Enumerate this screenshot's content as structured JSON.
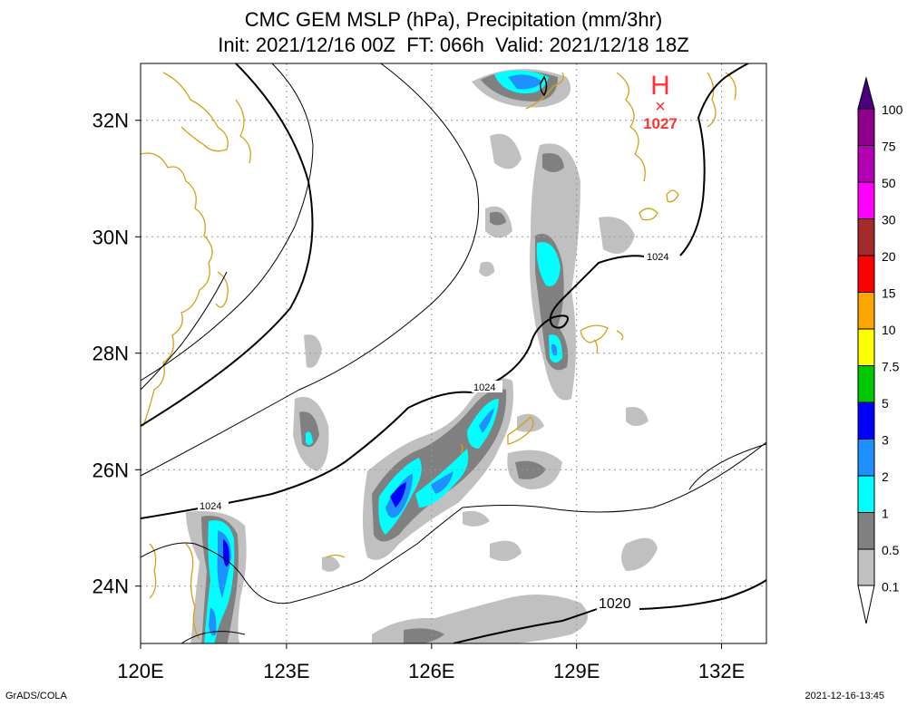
{
  "title": {
    "line1": "CMC GEM MSLP (hPa), Precipitation (mm/3hr)",
    "line2": "Init: 2021/12/16 00Z  FT: 066h  Valid: 2021/12/18 18Z"
  },
  "axes": {
    "x_labels": [
      "120E",
      "123E",
      "126E",
      "129E",
      "132E"
    ],
    "y_labels": [
      "32N",
      "30N",
      "28N",
      "26N",
      "24N"
    ]
  },
  "isobars": {
    "labels": [
      "1024",
      "1024",
      "1024",
      "1020"
    ]
  },
  "high_pressure": {
    "symbol": "H",
    "marker": "×",
    "value": "1027",
    "color": "#ff3333"
  },
  "colorbar": {
    "labels": [
      "100",
      "75",
      "50",
      "30",
      "20",
      "15",
      "10",
      "7.5",
      "5",
      "3",
      "2",
      "1",
      "0.5",
      "0.1"
    ],
    "colors": [
      "#8c008c",
      "#b400b4",
      "#ff00ff",
      "#a52a2a",
      "#ff0000",
      "#ffa500",
      "#ffff00",
      "#00c800",
      "#0000ff",
      "#1e90ff",
      "#00ffff",
      "#808080",
      "#c0c0c0"
    ],
    "top_color": "#4b0082"
  },
  "footer": {
    "left": "GrADS/COLA",
    "right": "2021-12-16-13:45"
  },
  "colors": {
    "coastline": "#d4a017",
    "grid": "#999999",
    "isobar": "#000000"
  }
}
